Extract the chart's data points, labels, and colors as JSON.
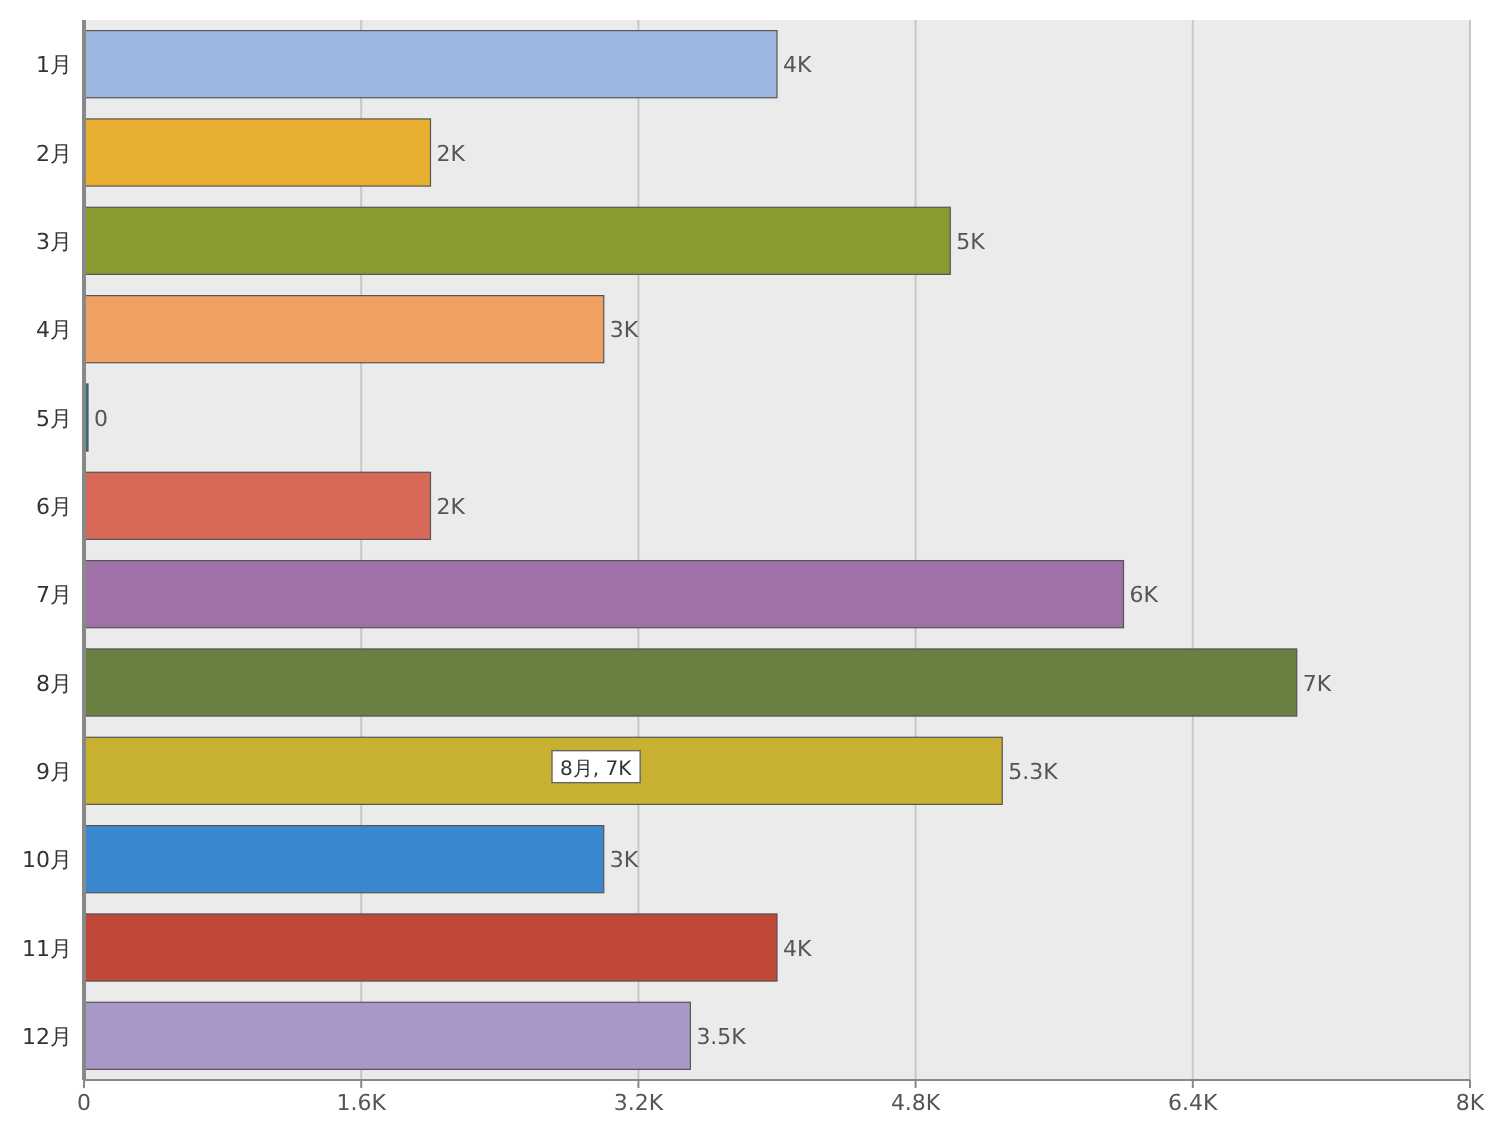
{
  "chart_data": {
    "type": "bar",
    "orientation": "horizontal",
    "categories": [
      "1月",
      "2月",
      "3月",
      "4月",
      "5月",
      "6月",
      "7月",
      "8月",
      "9月",
      "10月",
      "11月",
      "12月"
    ],
    "values": [
      4000,
      2000,
      5000,
      3000,
      0,
      2000,
      6000,
      7000,
      5300,
      3000,
      4000,
      3500
    ],
    "value_labels": [
      "4K",
      "2K",
      "5K",
      "3K",
      "0",
      "2K",
      "6K",
      "7K",
      "5.3K",
      "3K",
      "4K",
      "3.5K"
    ],
    "colors": [
      "#9db8e0",
      "#e8b030",
      "#8a9a30",
      "#f0a060",
      "#1a7a8a",
      "#d86858",
      "#a070a8",
      "#6a8040",
      "#c8b030",
      "#3a88d0",
      "#c04838",
      "#a898c8"
    ],
    "xlim": [
      0,
      8000
    ],
    "xticks": [
      {
        "value": 0,
        "label": "0"
      },
      {
        "value": 1600,
        "label": "1.6K"
      },
      {
        "value": 3200,
        "label": "3.2K"
      },
      {
        "value": 4800,
        "label": "4.8K"
      },
      {
        "value": 6400,
        "label": "6.4K"
      },
      {
        "value": 8000,
        "label": "8K"
      }
    ],
    "grid": "x",
    "annotations": [
      "8月, 7K"
    ]
  }
}
